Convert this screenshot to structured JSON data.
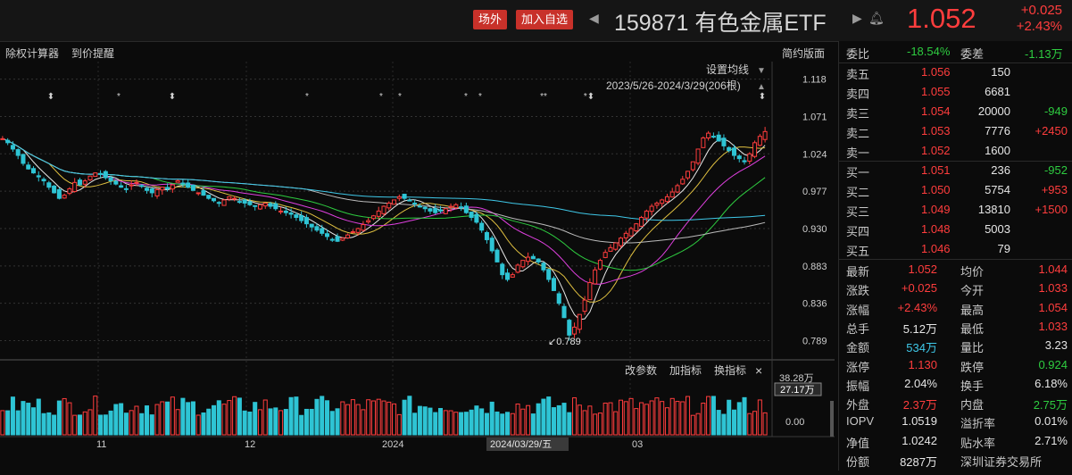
{
  "header": {
    "tag_offsite": "场外",
    "tag_watch": "加入自选",
    "code_name": "159871 有色金属ETF",
    "price": "1.052",
    "change": "+0.025",
    "change_pct": "+2.43%"
  },
  "toolbar": {
    "exright": "除权计算器",
    "alert": "到价提醒",
    "simple": "简约版面",
    "set_ma": "设置均线",
    "range": "2023/5/26-2024/3/29(206根)"
  },
  "volume_panel": {
    "modify": "改参数",
    "add": "加指标",
    "swap": "换指标",
    "close": "×",
    "vol_max": "38.28万",
    "vol_cursor": "27.17万",
    "vol_zero": "0.00"
  },
  "x_axis": {
    "labels": [
      "11",
      "12",
      "2024",
      "03"
    ],
    "cursor_date": "2024/03/29/五"
  },
  "y_axis": {
    "labels": [
      "1.118",
      "1.071",
      "1.024",
      "0.977",
      "0.930",
      "0.883",
      "0.836",
      "0.789"
    ]
  },
  "annotations": {
    "low_label": "0.789"
  },
  "colors": {
    "up": "#ff3d3d",
    "down": "#2ec4d4",
    "ma5": "#e8e8e8",
    "ma10": "#e0c040",
    "ma20": "#e040e0",
    "ma30": "#2ecc40",
    "ma60": "#bbbbbb",
    "ma120": "#3fc8e8"
  },
  "chart_data": {
    "type": "candlestick",
    "ylim": [
      0.775,
      1.14
    ],
    "days": 206,
    "close_values": [
      1.043,
      1.038,
      1.03,
      1.022,
      1.012,
      1.005,
      1.0,
      0.995,
      0.99,
      0.982,
      0.975,
      0.968,
      0.972,
      0.98,
      0.988,
      0.985,
      0.99,
      0.996,
      1.0,
      0.998,
      0.994,
      0.99,
      0.986,
      0.982,
      0.98,
      0.985,
      0.988,
      0.983,
      0.978,
      0.975,
      0.979,
      0.982,
      0.98,
      0.985,
      0.99,
      0.986,
      0.982,
      0.978,
      0.975,
      0.972,
      0.968,
      0.965,
      0.962,
      0.966,
      0.97,
      0.968,
      0.964,
      0.962,
      0.96,
      0.958,
      0.96,
      0.962,
      0.958,
      0.955,
      0.952,
      0.95,
      0.948,
      0.944,
      0.94,
      0.936,
      0.932,
      0.928,
      0.924,
      0.92,
      0.916,
      0.914,
      0.918,
      0.922,
      0.926,
      0.93,
      0.935,
      0.94,
      0.946,
      0.952,
      0.958,
      0.962,
      0.966,
      0.97,
      0.968,
      0.965,
      0.962,
      0.958,
      0.955,
      0.952,
      0.95,
      0.952,
      0.955,
      0.958,
      0.96,
      0.956,
      0.95,
      0.944,
      0.938,
      0.928,
      0.916,
      0.902,
      0.888,
      0.872,
      0.866,
      0.872,
      0.884,
      0.89,
      0.894,
      0.892,
      0.888,
      0.878,
      0.866,
      0.852,
      0.836,
      0.818,
      0.796,
      0.806,
      0.822,
      0.84,
      0.862,
      0.878,
      0.89,
      0.9,
      0.906,
      0.912,
      0.918,
      0.924,
      0.93,
      0.936,
      0.944,
      0.952,
      0.958,
      0.962,
      0.966,
      0.97,
      0.976,
      0.984,
      0.992,
      1.002,
      1.014,
      1.03,
      1.044,
      1.05,
      1.046,
      1.04,
      1.034,
      1.028,
      1.022,
      1.018,
      1.014,
      1.024,
      1.038,
      1.046,
      1.052
    ]
  },
  "order_book": {
    "webi_label": "委比",
    "webi_value": "-18.54%",
    "wecha_label": "委差",
    "wecha_value": "-1.13万",
    "asks": [
      {
        "label": "卖五",
        "price": "1.056",
        "vol": "150",
        "chg": ""
      },
      {
        "label": "卖四",
        "price": "1.055",
        "vol": "6681",
        "chg": ""
      },
      {
        "label": "卖三",
        "price": "1.054",
        "vol": "20000",
        "chg": "-949"
      },
      {
        "label": "卖二",
        "price": "1.053",
        "vol": "7776",
        "chg": "+2450"
      },
      {
        "label": "卖一",
        "price": "1.052",
        "vol": "1600",
        "chg": ""
      }
    ],
    "bids": [
      {
        "label": "买一",
        "price": "1.051",
        "vol": "236",
        "chg": "-952"
      },
      {
        "label": "买二",
        "price": "1.050",
        "vol": "5754",
        "chg": "+953"
      },
      {
        "label": "买三",
        "price": "1.049",
        "vol": "13810",
        "chg": "+1500"
      },
      {
        "label": "买四",
        "price": "1.048",
        "vol": "5003",
        "chg": ""
      },
      {
        "label": "买五",
        "price": "1.046",
        "vol": "79",
        "chg": ""
      }
    ]
  },
  "stats": [
    {
      "l1": "最新",
      "v1": "1.052",
      "c1": "red",
      "l2": "均价",
      "v2": "1.044",
      "c2": "red"
    },
    {
      "l1": "涨跌",
      "v1": "+0.025",
      "c1": "red",
      "l2": "今开",
      "v2": "1.033",
      "c2": "red"
    },
    {
      "l1": "涨幅",
      "v1": "+2.43%",
      "c1": "red",
      "l2": "最高",
      "v2": "1.054",
      "c2": "red"
    },
    {
      "l1": "总手",
      "v1": "5.12万",
      "c1": "white",
      "l2": "最低",
      "v2": "1.033",
      "c2": "red"
    },
    {
      "l1": "金额",
      "v1": "534万",
      "c1": "cyan",
      "l2": "量比",
      "v2": "3.23",
      "c2": "white"
    },
    {
      "l1": "涨停",
      "v1": "1.130",
      "c1": "red",
      "l2": "跌停",
      "v2": "0.924",
      "c2": "green"
    },
    {
      "l1": "振幅",
      "v1": "2.04%",
      "c1": "white",
      "l2": "换手",
      "v2": "6.18%",
      "c2": "white"
    },
    {
      "l1": "外盘",
      "v1": "2.37万",
      "c1": "red",
      "l2": "内盘",
      "v2": "2.75万",
      "c2": "green"
    },
    {
      "l1": "IOPV",
      "v1": "1.0519",
      "c1": "white",
      "l2": "溢折率",
      "v2": "0.01%",
      "c2": "white"
    },
    {
      "l1": "净值",
      "v1": "1.0242",
      "c1": "white",
      "l2": "贴水率",
      "v2": "2.71%",
      "c2": "white"
    },
    {
      "l1": "份额",
      "v1": "8287万",
      "c1": "white",
      "l2": "深圳证券交易所",
      "v2": "",
      "c2": "white"
    }
  ]
}
